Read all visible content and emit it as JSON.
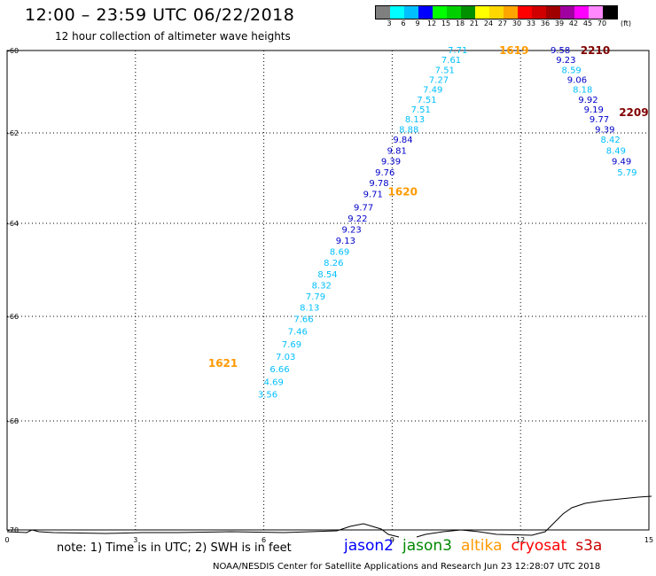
{
  "header": {
    "title": "12:00 – 23:59 UTC 06/22/2018",
    "subtitle": "12 hour collection of altimeter wave heights"
  },
  "color_scale": {
    "colors": [
      "#7f7f7f",
      "#00ffff",
      "#00bfff",
      "#0000ff",
      "#00ff00",
      "#00d000",
      "#009000",
      "#ffff00",
      "#ffd700",
      "#ffa500",
      "#ff0000",
      "#d00000",
      "#a00000",
      "#a000a0",
      "#ff00ff",
      "#ff88ff",
      "#000000"
    ],
    "labels": [
      "3",
      "6",
      "9",
      "12",
      "15",
      "18",
      "21",
      "24",
      "27",
      "30",
      "33",
      "36",
      "39",
      "42",
      "45",
      "70"
    ],
    "unit": "(ft)"
  },
  "map": {
    "lat_labels": [
      "-60",
      "-62",
      "-64",
      "-66",
      "-68",
      "-70"
    ],
    "lon_labels": [
      "0",
      "3",
      "6",
      "9",
      "12",
      "15"
    ]
  },
  "tracks": [
    {
      "label": "1619",
      "label_color": "#ff9900",
      "label_lat": -60.0,
      "label_lon": 11.5,
      "points": [
        {
          "lat": -60.0,
          "lon": 10.3,
          "value": "7.71",
          "color": "#00bfff"
        },
        {
          "lat": -60.24,
          "lon": 10.15,
          "value": "7.61",
          "color": "#00bfff"
        },
        {
          "lat": -60.48,
          "lon": 10.0,
          "value": "7.51",
          "color": "#00bfff"
        },
        {
          "lat": -60.72,
          "lon": 9.86,
          "value": "7.27",
          "color": "#00bfff"
        },
        {
          "lat": -60.96,
          "lon": 9.72,
          "value": "7.49",
          "color": "#00bfff"
        },
        {
          "lat": -61.2,
          "lon": 9.58,
          "value": "7.51",
          "color": "#00bfff"
        },
        {
          "lat": -61.44,
          "lon": 9.44,
          "value": "7.51",
          "color": "#00bfff"
        },
        {
          "lat": -61.68,
          "lon": 9.3,
          "value": "8.13",
          "color": "#00bfff"
        },
        {
          "lat": -61.92,
          "lon": 9.16,
          "value": "8.88",
          "color": "#00bfff"
        },
        {
          "lat": -62.16,
          "lon": 9.02,
          "value": "9.84",
          "color": "#0000c8"
        },
        {
          "lat": -62.4,
          "lon": 8.88,
          "value": "9.81",
          "color": "#0000c8"
        },
        {
          "lat": -62.64,
          "lon": 8.74,
          "value": "9.39",
          "color": "#0000c8"
        },
        {
          "lat": -62.88,
          "lon": 8.6,
          "value": "9.76",
          "color": "#0000c8"
        },
        {
          "lat": -63.12,
          "lon": 8.46,
          "value": "9.78",
          "color": "#0000c8"
        },
        {
          "lat": -63.36,
          "lon": 8.32,
          "value": "9.71",
          "color": "#0000c8"
        }
      ]
    },
    {
      "label": "1620",
      "label_color": "#ff9900",
      "label_lat": -63.3,
      "label_lon": 8.9,
      "points": [
        {
          "lat": -63.66,
          "lon": 8.1,
          "value": "9.77",
          "color": "#0000c8"
        },
        {
          "lat": -63.9,
          "lon": 7.96,
          "value": "9.22",
          "color": "#0000c8"
        },
        {
          "lat": -64.14,
          "lon": 7.82,
          "value": "9.23",
          "color": "#0000c8"
        },
        {
          "lat": -64.38,
          "lon": 7.68,
          "value": "9.13",
          "color": "#0000c8"
        },
        {
          "lat": -64.62,
          "lon": 7.54,
          "value": "8.69",
          "color": "#00bfff"
        },
        {
          "lat": -64.86,
          "lon": 7.4,
          "value": "8.26",
          "color": "#00bfff"
        },
        {
          "lat": -65.1,
          "lon": 7.26,
          "value": "8.54",
          "color": "#00bfff"
        },
        {
          "lat": -65.34,
          "lon": 7.12,
          "value": "8.32",
          "color": "#00bfff"
        },
        {
          "lat": -65.58,
          "lon": 6.98,
          "value": "7.79",
          "color": "#00bfff"
        },
        {
          "lat": -65.82,
          "lon": 6.84,
          "value": "8.13",
          "color": "#00bfff"
        },
        {
          "lat": -66.06,
          "lon": 6.7,
          "value": "7.66",
          "color": "#00bfff"
        },
        {
          "lat": -66.3,
          "lon": 6.56,
          "value": "7.46",
          "color": "#00bfff"
        },
        {
          "lat": -66.54,
          "lon": 6.42,
          "value": "7.69",
          "color": "#00bfff"
        },
        {
          "lat": -66.78,
          "lon": 6.28,
          "value": "7.03",
          "color": "#00bfff"
        }
      ]
    },
    {
      "label": "1621",
      "label_color": "#ff9900",
      "label_lat": -66.9,
      "label_lon": 4.7,
      "points": [
        {
          "lat": -67.02,
          "lon": 6.14,
          "value": "6.66",
          "color": "#00bfff"
        },
        {
          "lat": -67.26,
          "lon": 6.0,
          "value": "4.69",
          "color": "#00bfff"
        },
        {
          "lat": -67.5,
          "lon": 5.86,
          "value": "3.56",
          "color": "#00bfff"
        }
      ]
    },
    {
      "label": "2210",
      "label_color": "#800000",
      "label_lat": -60.0,
      "label_lon": 13.4,
      "points": [
        {
          "lat": -60.0,
          "lon": 12.7,
          "value": "9.58",
          "color": "#0000c8"
        },
        {
          "lat": -60.24,
          "lon": 12.83,
          "value": "9.23",
          "color": "#0000c8"
        },
        {
          "lat": -60.48,
          "lon": 12.96,
          "value": "8.59",
          "color": "#00bfff"
        },
        {
          "lat": -60.72,
          "lon": 13.09,
          "value": "9.06",
          "color": "#0000c8"
        },
        {
          "lat": -60.96,
          "lon": 13.22,
          "value": "8.18",
          "color": "#00bfff"
        },
        {
          "lat": -61.2,
          "lon": 13.35,
          "value": "9.92",
          "color": "#0000c8"
        },
        {
          "lat": -61.44,
          "lon": 13.48,
          "value": "9.19",
          "color": "#0000c8"
        },
        {
          "lat": -61.68,
          "lon": 13.61,
          "value": "9.77",
          "color": "#0000c8"
        },
        {
          "lat": -61.92,
          "lon": 13.74,
          "value": "9.39",
          "color": "#0000c8"
        },
        {
          "lat": -62.16,
          "lon": 13.87,
          "value": "8.42",
          "color": "#00bfff"
        },
        {
          "lat": -62.4,
          "lon": 14.0,
          "value": "8.49",
          "color": "#00bfff"
        },
        {
          "lat": -62.64,
          "lon": 14.13,
          "value": "9.49",
          "color": "#0000c8"
        },
        {
          "lat": -62.88,
          "lon": 14.26,
          "value": "5.79",
          "color": "#00bfff"
        }
      ]
    },
    {
      "label": "2209",
      "label_color": "#800000",
      "label_lat": -61.5,
      "label_lon": 14.3,
      "points": []
    }
  ],
  "note": "note: 1) Time is in UTC; 2) SWH is in feet",
  "legend": [
    {
      "name": "jason2",
      "color": "#0000ff"
    },
    {
      "name": "jason3",
      "color": "#008800"
    },
    {
      "name": "altika",
      "color": "#ff9900"
    },
    {
      "name": "cryosat",
      "color": "#ff0000"
    },
    {
      "name": "s3a",
      "color": "#cc0000"
    }
  ],
  "footer": "NOAA/NESDIS Center for Satellite Applications and Research   Jun 23 12:28:07 UTC 2018"
}
